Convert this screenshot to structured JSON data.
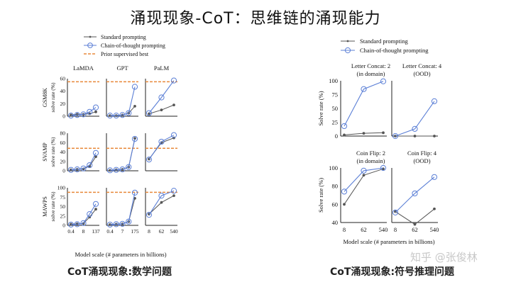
{
  "title": "涌现现象-CoT：思维链的涌现能力",
  "caption_left": "CoT涌现现象:数学问题",
  "caption_right": "CoT涌现现象:符号推理问题",
  "watermark": "知乎 @张俊林",
  "colors": {
    "standard": "#555555",
    "cot": "#5b7fd6",
    "supervised": "#e8893a"
  },
  "chart_data": [
    {
      "type": "line",
      "panel_group": "math",
      "legend": [
        "Standard prompting",
        "Chain-of-thought prompting",
        "Prior supervised best"
      ],
      "columns": [
        "LaMDA",
        "GPT",
        "PaLM"
      ],
      "rows": [
        "GSM8K",
        "SVAMP",
        "MAWPS"
      ],
      "ylabel": "solve rate (%)",
      "xlabel": "Model scale (# parameters in billions)",
      "x_ticks": {
        "LaMDA": [
          "0.4",
          "8",
          "137"
        ],
        "GPT": [
          "0.4",
          "7",
          "175"
        ],
        "PaLM": [
          "8",
          "62",
          "540"
        ]
      },
      "y_ticks": {
        "GSM8K": [
          "0",
          "20",
          "40",
          "60"
        ],
        "SVAMP": [
          "0",
          "20",
          "40",
          "60",
          "80"
        ],
        "MAWPS": [
          "0",
          "25",
          "50",
          "75",
          "100"
        ]
      },
      "ylim": {
        "GSM8K": [
          0,
          60
        ],
        "SVAMP": [
          0,
          80
        ],
        "MAWPS": [
          0,
          100
        ]
      },
      "panels": [
        {
          "row": "GSM8K",
          "col": "LaMDA",
          "standard": [
            2,
            3,
            3,
            4,
            7
          ],
          "cot": [
            1,
            2,
            3,
            7,
            14
          ],
          "supervised": 55
        },
        {
          "row": "GSM8K",
          "col": "GPT",
          "standard": [
            1,
            1,
            2,
            5,
            16
          ],
          "cot": [
            1,
            1,
            2,
            5,
            47
          ],
          "supervised": 55
        },
        {
          "row": "GSM8K",
          "col": "PaLM",
          "standard": [
            4,
            10,
            18
          ],
          "cot": [
            5,
            30,
            57
          ],
          "supervised": 55
        },
        {
          "row": "SVAMP",
          "col": "LaMDA",
          "standard": [
            2,
            3,
            4,
            10,
            30
          ],
          "cot": [
            2,
            3,
            5,
            12,
            38
          ],
          "supervised": 48
        },
        {
          "row": "SVAMP",
          "col": "GPT",
          "standard": [
            1,
            2,
            3,
            8,
            69
          ],
          "cot": [
            1,
            2,
            3,
            8,
            68
          ],
          "supervised": 48
        },
        {
          "row": "SVAMP",
          "col": "PaLM",
          "standard": [
            25,
            60,
            70
          ],
          "cot": [
            24,
            62,
            76
          ],
          "supervised": 48
        },
        {
          "row": "MAWPS",
          "col": "LaMDA",
          "standard": [
            3,
            4,
            5,
            22,
            43
          ],
          "cot": [
            2,
            3,
            6,
            30,
            57
          ],
          "supervised": 88
        },
        {
          "row": "MAWPS",
          "col": "GPT",
          "standard": [
            2,
            3,
            4,
            10,
            72
          ],
          "cot": [
            2,
            3,
            4,
            10,
            87
          ],
          "supervised": 88
        },
        {
          "row": "MAWPS",
          "col": "PaLM",
          "standard": [
            30,
            61,
            79
          ],
          "cot": [
            28,
            79,
            92
          ],
          "supervised": 88
        }
      ]
    },
    {
      "type": "line",
      "panel_group": "symbolic",
      "legend": [
        "Standard prompting",
        "Chain-of-thought prompting"
      ],
      "ylabel": "Solve rate (%)",
      "xlabel": "Model scale (# parameters in billions)",
      "x_ticks": [
        "8",
        "62",
        "540"
      ],
      "panels": [
        {
          "title": [
            "Letter Concat: 2",
            "(in domain)"
          ],
          "ylim": [
            0,
            100
          ],
          "yticks": [
            "0",
            "25",
            "50",
            "75",
            "100"
          ],
          "standard": [
            2,
            5,
            6
          ],
          "cot": [
            18,
            85,
            99
          ]
        },
        {
          "title": [
            "Letter Concat: 4",
            "(OOD)"
          ],
          "ylim": [
            0,
            100
          ],
          "yticks": [],
          "standard": [
            0,
            0,
            0
          ],
          "cot": [
            0,
            13,
            63
          ]
        },
        {
          "title": [
            "Coin Flip: 2",
            "(in domain)"
          ],
          "ylim": [
            40,
            100
          ],
          "yticks": [
            "40",
            "60",
            "80",
            "100"
          ],
          "standard": [
            60,
            92,
            99
          ],
          "cot": [
            74,
            97,
            100
          ]
        },
        {
          "title": [
            "Coin Flip: 4",
            "(OOD)"
          ],
          "ylim": [
            40,
            100
          ],
          "yticks": [],
          "standard": [
            52,
            38,
            55
          ],
          "cot": [
            51,
            72,
            90
          ]
        }
      ]
    }
  ]
}
